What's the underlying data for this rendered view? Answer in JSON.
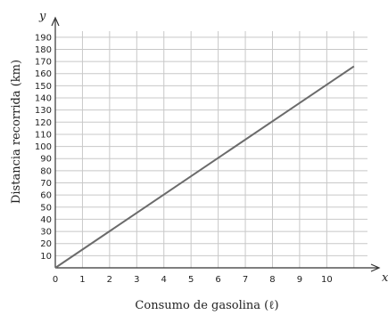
{
  "chart_data": {
    "type": "line",
    "xlabel": "Consumo de gasolina (ℓ)",
    "ylabel": "Distancia recorrida (km)",
    "x_axis_letter": "x",
    "y_axis_letter": "y",
    "x_ticks": [
      0,
      1,
      2,
      3,
      4,
      5,
      6,
      7,
      8,
      9,
      10
    ],
    "y_ticks": [
      10,
      20,
      30,
      40,
      50,
      60,
      70,
      80,
      90,
      100,
      110,
      120,
      130,
      140,
      150,
      160,
      170,
      180,
      190
    ],
    "xlim": [
      0,
      11.5
    ],
    "ylim": [
      0,
      195
    ],
    "grid": true,
    "series": [
      {
        "x": [
          0,
          11.0
        ],
        "y": [
          0,
          166
        ],
        "color": "#6b6b6b"
      }
    ]
  }
}
